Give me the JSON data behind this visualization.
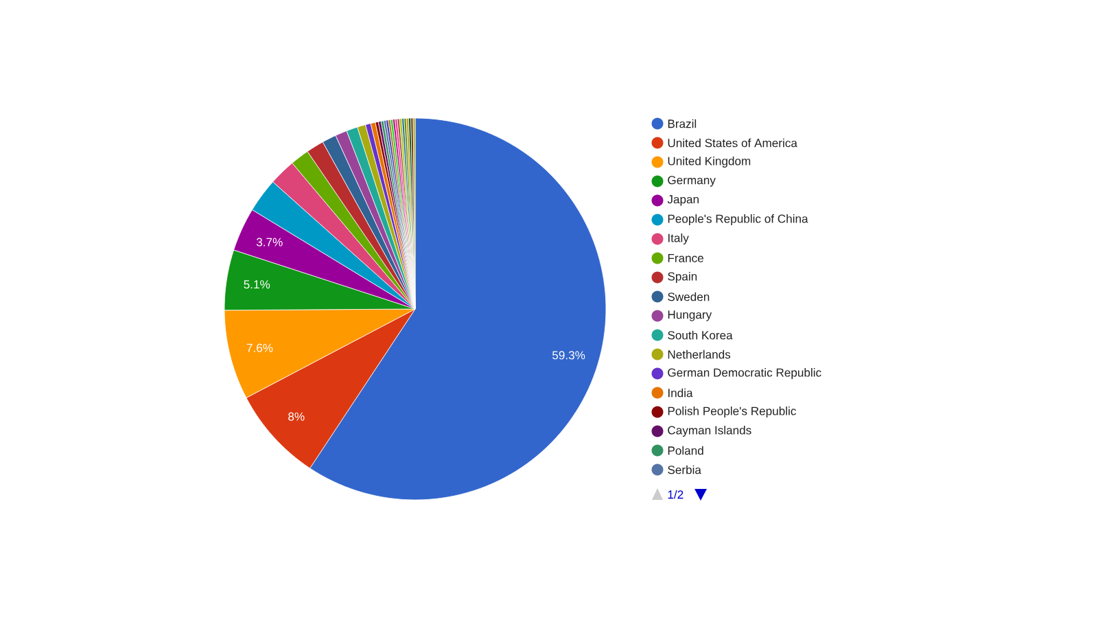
{
  "chart_data": {
    "type": "pie",
    "categories": [
      "Brazil",
      "United States of America",
      "United Kingdom",
      "Germany",
      "Japan",
      "People's Republic of China",
      "Italy",
      "France",
      "Spain",
      "Sweden",
      "Hungary",
      "South Korea",
      "Netherlands",
      "German Democratic Republic",
      "India",
      "Polish People's Republic",
      "Cayman Islands",
      "Poland",
      "Serbia",
      null,
      null,
      null,
      null,
      null,
      null,
      null,
      null,
      null,
      null,
      null,
      null,
      null
    ],
    "values": [
      59.3,
      8,
      7.6,
      5.1,
      3.7,
      2.9,
      2.25,
      1.6,
      1.5,
      1.2,
      1.0,
      0.95,
      0.7,
      0.45,
      0.4,
      0.25,
      0.23,
      0.22,
      0.2,
      0.19,
      0.19,
      0.19,
      0.19,
      0.19,
      0.19,
      0.19,
      0.19,
      0.19,
      0.19,
      0.19,
      0.19,
      0.17
    ],
    "colors": [
      "#3366cc",
      "#dc3912",
      "#ff9900",
      "#109618",
      "#990099",
      "#0099c6",
      "#dd4477",
      "#66aa00",
      "#b82e2e",
      "#316395",
      "#994499",
      "#22aa99",
      "#aaaa11",
      "#6633cc",
      "#e67300",
      "#8b0707",
      "#651067",
      "#329262",
      "#5574a6",
      "#3b3eac",
      "#b77322",
      "#16d620",
      "#b91383",
      "#f4359e",
      "#9c5935",
      "#a9c413",
      "#2a778d",
      "#668d1c",
      "#bea413",
      "#0c5922",
      "#743411",
      "#aaaa11"
    ],
    "value_labels": [
      "59.3%",
      "8%",
      "7.6%",
      "5.1%",
      "3.7%",
      null,
      null,
      null,
      null,
      null,
      null,
      null,
      null,
      null,
      null,
      null,
      null,
      null,
      null,
      null,
      null,
      null,
      null,
      null,
      null,
      null,
      null,
      null,
      null,
      null,
      null,
      null
    ],
    "legend": "right",
    "annotations": [
      "1/2"
    ]
  }
}
